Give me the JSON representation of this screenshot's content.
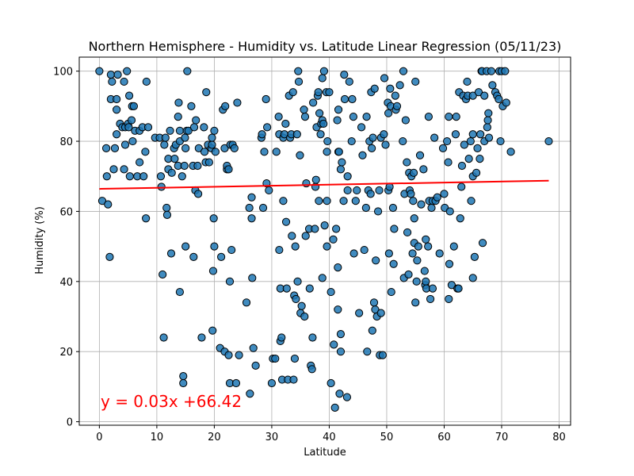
{
  "chart_data": {
    "type": "scatter",
    "title": "Northern Hemisphere - Humidity vs. Latitude Linear Regression (05/11/23)",
    "xlabel": "Latitude",
    "ylabel": "Humidity (%)",
    "xlim": [
      -3.5,
      82
    ],
    "ylim": [
      -1,
      104
    ],
    "xticks": [
      0,
      10,
      20,
      30,
      40,
      50,
      60,
      70,
      80
    ],
    "yticks": [
      0,
      20,
      40,
      60,
      80,
      100
    ],
    "grid": true,
    "point_color": "#1f77b4",
    "point_edge_color": "#000000",
    "regression": {
      "slope": 0.03,
      "intercept": 66.42,
      "x_range": [
        0,
        78.2
      ],
      "color": "#ff0000",
      "equation": "y = 0.03x +66.42"
    },
    "points": [
      [
        0,
        100
      ],
      [
        0.5,
        63
      ],
      [
        1.3,
        70
      ],
      [
        1.5,
        62
      ],
      [
        1.2,
        78
      ],
      [
        1.8,
        47
      ],
      [
        2,
        99
      ],
      [
        2,
        92
      ],
      [
        2.2,
        97
      ],
      [
        2.5,
        72
      ],
      [
        2.7,
        78
      ],
      [
        3,
        89
      ],
      [
        3,
        82
      ],
      [
        3,
        92
      ],
      [
        3.2,
        99
      ],
      [
        3.6,
        85
      ],
      [
        4,
        84
      ],
      [
        4.3,
        97
      ],
      [
        4.5,
        79
      ],
      [
        4.3,
        72
      ],
      [
        4.5,
        84
      ],
      [
        4.8,
        100
      ],
      [
        5,
        85
      ],
      [
        5.1,
        84
      ],
      [
        5.2,
        93
      ],
      [
        5.3,
        70
      ],
      [
        5.6,
        86
      ],
      [
        5.7,
        90
      ],
      [
        5.8,
        80
      ],
      [
        6,
        90
      ],
      [
        6.2,
        83
      ],
      [
        6.6,
        70
      ],
      [
        7,
        74
      ],
      [
        7,
        83
      ],
      [
        7.5,
        84
      ],
      [
        7.7,
        70
      ],
      [
        8,
        77
      ],
      [
        8.1,
        58
      ],
      [
        8.2,
        97
      ],
      [
        8.5,
        84
      ],
      [
        9.7,
        81
      ],
      [
        10.5,
        81
      ],
      [
        10.7,
        70
      ],
      [
        10.8,
        67
      ],
      [
        11,
        42
      ],
      [
        11.2,
        24
      ],
      [
        11.3,
        79
      ],
      [
        11.5,
        81
      ],
      [
        11.7,
        61
      ],
      [
        11.8,
        59
      ],
      [
        12,
        75
      ],
      [
        12,
        72
      ],
      [
        12.3,
        83
      ],
      [
        12.5,
        48
      ],
      [
        12.6,
        71
      ],
      [
        13,
        78
      ],
      [
        13.1,
        75
      ],
      [
        13.3,
        79
      ],
      [
        13.7,
        73
      ],
      [
        13.7,
        87
      ],
      [
        13.8,
        91
      ],
      [
        14,
        80
      ],
      [
        14,
        37
      ],
      [
        14,
        83
      ],
      [
        14.4,
        70
      ],
      [
        14.6,
        13
      ],
      [
        14.6,
        11
      ],
      [
        14.9,
        81
      ],
      [
        14.8,
        73
      ],
      [
        15,
        78
      ],
      [
        15,
        50
      ],
      [
        15.2,
        83
      ],
      [
        15.3,
        100
      ],
      [
        15.5,
        83
      ],
      [
        16,
        90
      ],
      [
        16.3,
        73
      ],
      [
        16.4,
        47
      ],
      [
        16.5,
        84
      ],
      [
        16.7,
        66
      ],
      [
        16.8,
        86
      ],
      [
        17.1,
        73
      ],
      [
        17.2,
        65
      ],
      [
        17.3,
        78
      ],
      [
        17.8,
        24
      ],
      [
        18.2,
        84
      ],
      [
        18.3,
        77
      ],
      [
        18.5,
        74
      ],
      [
        18.6,
        94
      ],
      [
        18.9,
        79
      ],
      [
        19.1,
        74
      ],
      [
        19.5,
        78
      ],
      [
        19.6,
        79
      ],
      [
        19.6,
        81
      ],
      [
        19.7,
        26
      ],
      [
        19.9,
        58
      ],
      [
        20,
        83
      ],
      [
        20.2,
        77
      ],
      [
        19.8,
        43
      ],
      [
        20,
        50
      ],
      [
        21,
        21
      ],
      [
        21.2,
        47
      ],
      [
        21.5,
        89
      ],
      [
        21.8,
        20
      ],
      [
        21.9,
        90
      ],
      [
        21.8,
        78
      ],
      [
        22.2,
        72
      ],
      [
        22.2,
        73
      ],
      [
        22.5,
        72
      ],
      [
        22.5,
        19
      ],
      [
        22.7,
        40
      ],
      [
        22.7,
        11
      ],
      [
        22.8,
        79
      ],
      [
        23,
        49
      ],
      [
        23.2,
        79
      ],
      [
        23.5,
        78
      ],
      [
        23.8,
        11
      ],
      [
        24,
        91
      ],
      [
        24.3,
        19
      ],
      [
        25.6,
        34
      ],
      [
        26.1,
        61
      ],
      [
        26.2,
        8
      ],
      [
        26.5,
        64
      ],
      [
        26.6,
        41
      ],
      [
        26.5,
        58
      ],
      [
        26.8,
        21
      ],
      [
        27.2,
        16
      ],
      [
        28.2,
        81
      ],
      [
        28.3,
        82
      ],
      [
        28.5,
        61
      ],
      [
        28.7,
        77
      ],
      [
        29,
        92
      ],
      [
        29.1,
        68
      ],
      [
        29.2,
        84
      ],
      [
        29.5,
        66
      ],
      [
        30,
        11
      ],
      [
        30.2,
        18
      ],
      [
        30.6,
        18
      ],
      [
        30.8,
        77
      ],
      [
        31.2,
        87
      ],
      [
        31.3,
        49
      ],
      [
        31.3,
        82
      ],
      [
        31.5,
        38
      ],
      [
        31.5,
        23
      ],
      [
        31.7,
        24
      ],
      [
        31.8,
        12
      ],
      [
        32,
        81
      ],
      [
        32,
        63
      ],
      [
        32.2,
        82
      ],
      [
        32.4,
        85
      ],
      [
        32.5,
        57
      ],
      [
        32.6,
        38
      ],
      [
        32.8,
        12
      ],
      [
        33,
        93
      ],
      [
        33.2,
        81
      ],
      [
        33.4,
        82
      ],
      [
        33.5,
        53
      ],
      [
        33.7,
        94
      ],
      [
        33.8,
        12
      ],
      [
        33.9,
        36
      ],
      [
        34,
        18
      ],
      [
        34.1,
        50
      ],
      [
        34.2,
        35
      ],
      [
        34.4,
        82
      ],
      [
        34.5,
        40
      ],
      [
        34.6,
        100
      ],
      [
        34.7,
        97
      ],
      [
        34.9,
        76
      ],
      [
        35,
        31
      ],
      [
        35.2,
        33
      ],
      [
        35.6,
        89
      ],
      [
        35.7,
        30
      ],
      [
        35.8,
        87
      ],
      [
        35.9,
        53
      ],
      [
        36,
        68
      ],
      [
        36.5,
        55
      ],
      [
        36.6,
        38
      ],
      [
        36.8,
        16
      ],
      [
        37,
        15
      ],
      [
        37.1,
        24
      ],
      [
        37.2,
        91
      ],
      [
        37.5,
        55
      ],
      [
        37.6,
        67
      ],
      [
        37.7,
        69
      ],
      [
        37.8,
        84
      ],
      [
        38,
        93
      ],
      [
        38.1,
        94
      ],
      [
        38.2,
        63
      ],
      [
        38.3,
        88
      ],
      [
        38.5,
        82
      ],
      [
        38.6,
        85
      ],
      [
        38.8,
        41
      ],
      [
        38.8,
        98
      ],
      [
        38.8,
        86
      ],
      [
        39,
        85
      ],
      [
        39.1,
        100
      ],
      [
        39.2,
        56
      ],
      [
        39.5,
        94
      ],
      [
        39.6,
        50
      ],
      [
        39.6,
        77
      ],
      [
        39.6,
        63
      ],
      [
        39.7,
        80
      ],
      [
        40,
        94
      ],
      [
        40.3,
        37
      ],
      [
        40.3,
        11
      ],
      [
        40.7,
        52
      ],
      [
        40.8,
        22
      ],
      [
        41,
        4
      ],
      [
        41.2,
        55
      ],
      [
        41.5,
        44
      ],
      [
        41.6,
        89
      ],
      [
        41.4,
        86
      ],
      [
        41.5,
        32
      ],
      [
        41.6,
        77
      ],
      [
        41.8,
        8
      ],
      [
        42,
        25
      ],
      [
        41.7,
        77
      ],
      [
        42,
        72
      ],
      [
        42,
        20
      ],
      [
        42.2,
        74
      ],
      [
        42.5,
        63
      ],
      [
        42.6,
        99
      ],
      [
        42.7,
        92
      ],
      [
        43.2,
        66
      ],
      [
        43.2,
        70
      ],
      [
        43.1,
        7
      ],
      [
        43.5,
        97
      ],
      [
        43.9,
        80
      ],
      [
        44,
        92
      ],
      [
        44.2,
        87
      ],
      [
        44.3,
        48
      ],
      [
        44.6,
        63
      ],
      [
        44.8,
        66
      ],
      [
        45.2,
        31
      ],
      [
        45.6,
        84
      ],
      [
        45.8,
        76
      ],
      [
        46.1,
        49
      ],
      [
        46.4,
        61
      ],
      [
        46.5,
        87
      ],
      [
        46.6,
        20
      ],
      [
        46.8,
        66
      ],
      [
        47,
        80
      ],
      [
        47.2,
        65
      ],
      [
        47.3,
        94
      ],
      [
        47.4,
        78
      ],
      [
        47.5,
        26
      ],
      [
        47.6,
        81
      ],
      [
        47.8,
        34
      ],
      [
        47.9,
        95
      ],
      [
        48,
        32
      ],
      [
        48.1,
        46
      ],
      [
        48.3,
        30
      ],
      [
        48.5,
        60
      ],
      [
        48.7,
        66
      ],
      [
        48.8,
        19
      ],
      [
        49,
        81
      ],
      [
        49,
        31
      ],
      [
        49.3,
        19
      ],
      [
        49.5,
        82
      ],
      [
        49.6,
        98
      ],
      [
        49.8,
        79
      ],
      [
        50.2,
        91
      ],
      [
        50.3,
        88
      ],
      [
        50.3,
        66
      ],
      [
        50.4,
        48
      ],
      [
        50.5,
        67
      ],
      [
        50.6,
        95
      ],
      [
        50.7,
        90
      ],
      [
        50.8,
        37
      ],
      [
        51.1,
        61
      ],
      [
        51.2,
        45
      ],
      [
        51.3,
        55
      ],
      [
        51.5,
        93
      ],
      [
        51.6,
        89
      ],
      [
        51.8,
        90
      ],
      [
        52.3,
        96
      ],
      [
        52.8,
        80
      ],
      [
        52.9,
        100
      ],
      [
        53,
        41
      ],
      [
        53.1,
        65
      ],
      [
        53.3,
        86
      ],
      [
        53.5,
        74
      ],
      [
        53.6,
        54
      ],
      [
        53.8,
        42
      ],
      [
        53.9,
        71
      ],
      [
        54,
        66
      ],
      [
        54.2,
        65
      ],
      [
        54.3,
        70
      ],
      [
        54.5,
        48
      ],
      [
        54.6,
        63
      ],
      [
        54.7,
        71
      ],
      [
        54.8,
        51
      ],
      [
        54.8,
        58
      ],
      [
        55,
        97
      ],
      [
        55,
        34
      ],
      [
        55.2,
        40
      ],
      [
        55.3,
        46
      ],
      [
        55.5,
        50
      ],
      [
        55.8,
        76
      ],
      [
        56,
        62
      ],
      [
        56.4,
        72
      ],
      [
        56.6,
        43
      ],
      [
        56.7,
        39
      ],
      [
        56.8,
        52
      ],
      [
        56.8,
        40
      ],
      [
        56.9,
        38
      ],
      [
        57.2,
        50
      ],
      [
        57.3,
        87
      ],
      [
        57.4,
        63
      ],
      [
        57.6,
        35
      ],
      [
        57.8,
        61
      ],
      [
        58,
        63
      ],
      [
        58,
        38
      ],
      [
        58.3,
        81
      ],
      [
        58.5,
        63
      ],
      [
        58.8,
        64
      ],
      [
        59.2,
        48
      ],
      [
        59.8,
        78
      ],
      [
        60,
        65
      ],
      [
        60.1,
        61
      ],
      [
        60.5,
        80
      ],
      [
        60.7,
        74
      ],
      [
        60.8,
        87
      ],
      [
        60.8,
        35
      ],
      [
        60.9,
        45
      ],
      [
        61,
        60
      ],
      [
        61.3,
        39
      ],
      [
        61.7,
        50
      ],
      [
        62,
        82
      ],
      [
        62.1,
        87
      ],
      [
        62.3,
        38
      ],
      [
        62.5,
        38
      ],
      [
        62.6,
        94
      ],
      [
        62.8,
        58
      ],
      [
        63,
        67
      ],
      [
        63.1,
        73
      ],
      [
        63.3,
        93
      ],
      [
        63.5,
        79
      ],
      [
        63.8,
        92
      ],
      [
        64,
        97
      ],
      [
        64.1,
        93
      ],
      [
        64.3,
        75
      ],
      [
        64.6,
        80
      ],
      [
        64.7,
        63
      ],
      [
        65,
        93
      ],
      [
        65,
        82
      ],
      [
        65,
        70
      ],
      [
        65,
        41
      ],
      [
        65.3,
        47
      ],
      [
        65.6,
        71
      ],
      [
        65.8,
        78
      ],
      [
        66,
        94
      ],
      [
        66.2,
        75
      ],
      [
        66.3,
        82
      ],
      [
        66.5,
        100
      ],
      [
        66.6,
        100
      ],
      [
        66.7,
        51
      ],
      [
        67,
        93
      ],
      [
        67,
        80
      ],
      [
        67.4,
        100
      ],
      [
        67.5,
        84
      ],
      [
        67.6,
        86
      ],
      [
        67.7,
        88
      ],
      [
        67.8,
        81
      ],
      [
        68.2,
        100
      ],
      [
        68.4,
        96
      ],
      [
        68.9,
        94
      ],
      [
        69.2,
        93
      ],
      [
        69.5,
        92
      ],
      [
        69.6,
        100
      ],
      [
        69.8,
        80
      ],
      [
        70,
        100
      ],
      [
        70.2,
        90
      ],
      [
        70.6,
        100
      ],
      [
        70.8,
        91
      ],
      [
        71.6,
        77
      ],
      [
        78.2,
        80
      ]
    ]
  }
}
